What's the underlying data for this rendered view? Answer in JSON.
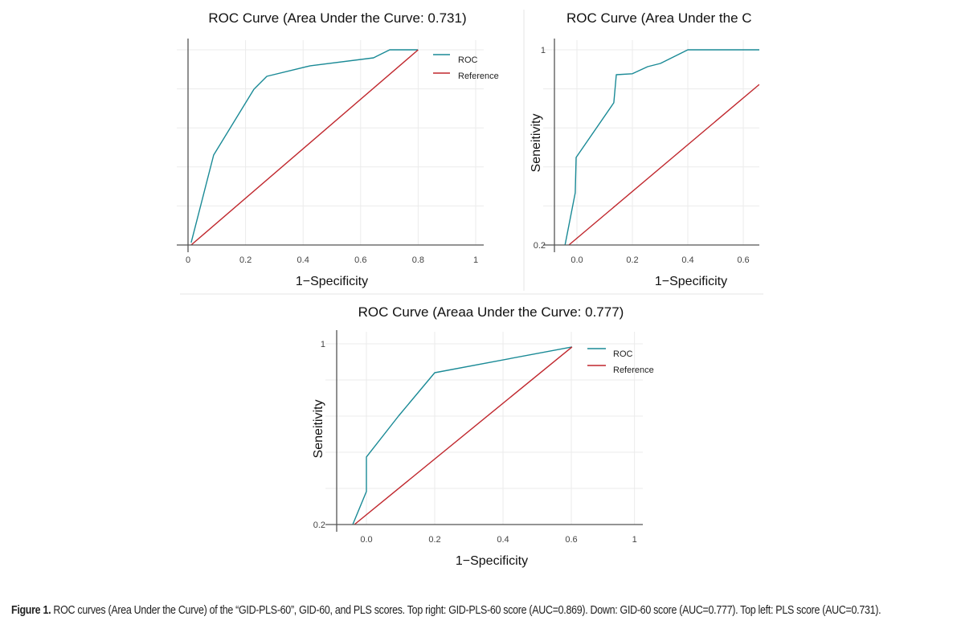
{
  "figure": {
    "caption_label": "Figure 1.",
    "caption_text": " ROC curves (Area Under the Curve) of the “GID-PLS-60”, GID-60, and PLS scores. Top right: GID-PLS-60 score (AUC=0.869). Down: GID-60 score (AUC=0.777). Top left: PLS score (AUC=0.731)."
  },
  "colors": {
    "roc": "#1a8a96",
    "reference": "#c0272d"
  },
  "chart_data": [
    {
      "id": "top-left",
      "panel": "Top left",
      "score": "PLS",
      "type": "line",
      "title": "ROC Curve (Area Under the Curve: 0.731)",
      "auc": 0.731,
      "xlabel": "1−Specificity",
      "ylabel": "",
      "x_ticks": [
        "0",
        "0.2",
        "0.4",
        "0.6",
        "0.8",
        "1"
      ],
      "x_tick_values": [
        0,
        0.2,
        0.4,
        0.6,
        0.8,
        1
      ],
      "y_ticks": [],
      "y_tick_values": [],
      "y_grid": [
        0,
        0.2,
        0.4,
        0.6,
        0.8,
        1
      ],
      "xlim": [
        0,
        1
      ],
      "ylim": [
        0,
        1
      ],
      "grid": true,
      "legend": {
        "position": "top-right",
        "entries": [
          "ROC",
          "Reference"
        ]
      },
      "series": [
        {
          "name": "ROC",
          "x": [
            0.011,
            0.089,
            0.229,
            0.274,
            0.425,
            0.645,
            0.656,
            0.701,
            0.799
          ],
          "y": [
            0.012,
            0.461,
            0.798,
            0.864,
            0.918,
            0.959,
            0.967,
            1.0,
            1.0
          ]
        },
        {
          "name": "Reference",
          "x": [
            0.011,
            0.8
          ],
          "y": [
            0.0,
            1.0
          ]
        }
      ]
    },
    {
      "id": "top-right",
      "panel": "Top right",
      "score": "GID-PLS-60",
      "type": "line",
      "title": "ROC Curve (Area Under the C",
      "auc": 0.869,
      "xlabel": "1−Specificity",
      "ylabel": "Seneitivity",
      "x_ticks": [
        "0.0",
        "0.2",
        "0.4",
        "0.6"
      ],
      "x_tick_values": [
        0.0,
        0.2,
        0.4,
        0.6
      ],
      "y_ticks": [
        "0.2",
        "1"
      ],
      "y_tick_values": [
        0.2,
        1.0
      ],
      "y_grid": [
        0.2,
        0.36,
        0.52,
        0.68,
        0.84,
        1.0
      ],
      "xlim": [
        -0.081,
        0.658
      ],
      "ylim": [
        0.2,
        1.0
      ],
      "grid": true,
      "legend": null,
      "series": [
        {
          "name": "ROC",
          "x": [
            -0.043,
            -0.006,
            -0.003,
            0.133,
            0.142,
            0.2,
            0.255,
            0.301,
            0.4,
            0.658
          ],
          "y": [
            0.2,
            0.414,
            0.559,
            0.783,
            0.898,
            0.902,
            0.931,
            0.944,
            1.0,
            1.0
          ]
        },
        {
          "name": "Reference",
          "x": [
            -0.029,
            0.658
          ],
          "y": [
            0.2,
            0.858
          ]
        }
      ]
    },
    {
      "id": "bottom",
      "panel": "Down",
      "score": "GID-60",
      "type": "line",
      "title": "ROC Curve (Areaa Under the Curve: 0.777)",
      "auc": 0.777,
      "xlabel": "1−Specificity",
      "ylabel": "Seneitivity",
      "x_ticks": [
        "0.0",
        "0.2",
        "0.4",
        "0.6",
        "1"
      ],
      "x_tick_values": [
        0.0,
        0.2,
        0.4,
        0.6,
        0.785
      ],
      "y_ticks": [
        "0.2",
        "1"
      ],
      "y_tick_values": [
        0.2,
        1.0
      ],
      "y_grid": [
        0.2,
        0.36,
        0.52,
        0.68,
        0.84,
        1.0
      ],
      "xlim": [
        -0.087,
        0.8
      ],
      "ylim": [
        0.2,
        1.0
      ],
      "grid": true,
      "legend": {
        "position": "top-right",
        "entries": [
          "ROC",
          "Reference"
        ]
      },
      "series": [
        {
          "name": "ROC",
          "x": [
            -0.04,
            0.0,
            0.0,
            0.094,
            0.2,
            0.602
          ],
          "y": [
            0.2,
            0.346,
            0.499,
            0.68,
            0.872,
            0.986
          ]
        },
        {
          "name": "Reference",
          "x": [
            -0.035,
            0.602
          ],
          "y": [
            0.2,
            0.986
          ]
        }
      ]
    }
  ]
}
